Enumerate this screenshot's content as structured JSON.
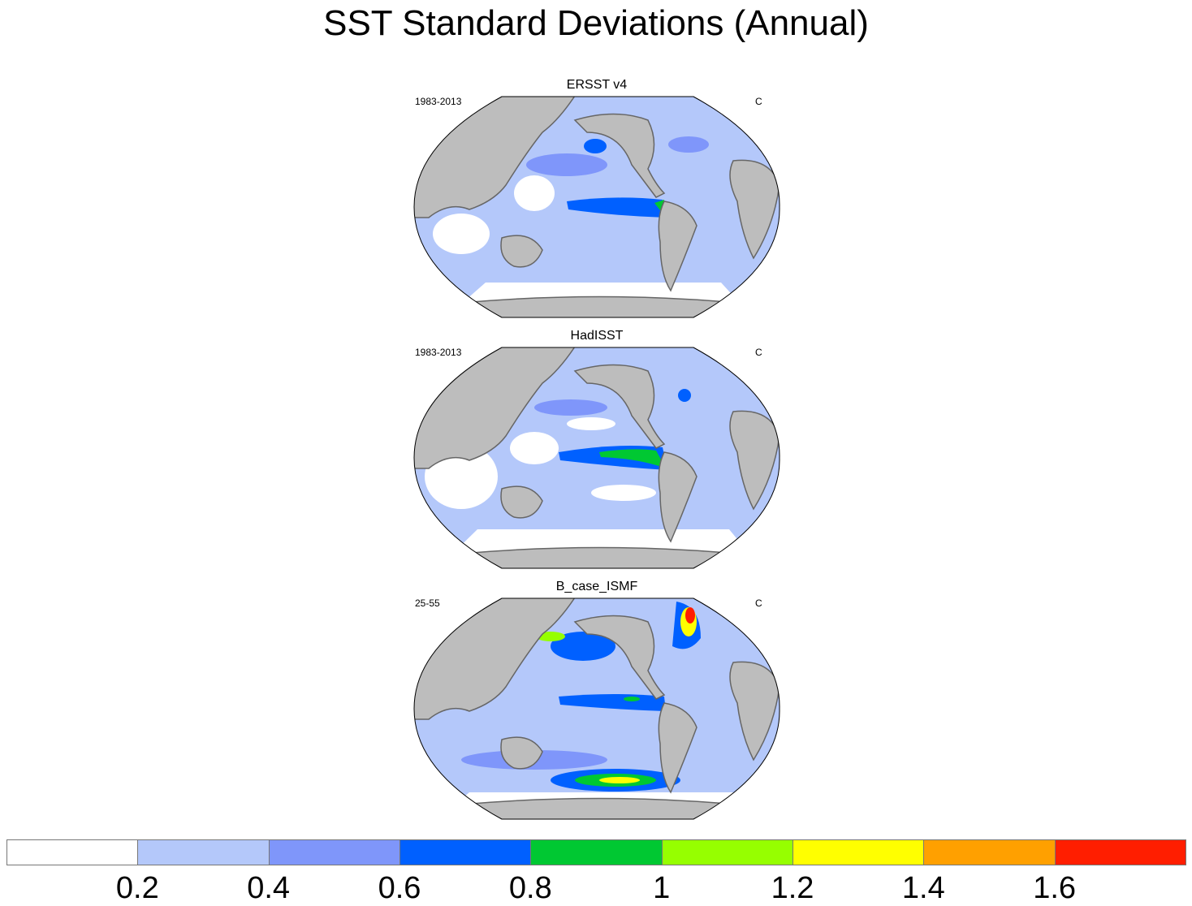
{
  "title": "SST Standard Deviations (Annual)",
  "panels": [
    {
      "title": "ERSST v4",
      "left_label": "1983-2013",
      "right_label": "C"
    },
    {
      "title": "HadISST",
      "left_label": "1983-2013",
      "right_label": "C"
    },
    {
      "title": "B_case_ISMF",
      "left_label": "25-55",
      "right_label": "C"
    }
  ],
  "colorbar": {
    "colors": [
      "#ffffff",
      "#b4c8fa",
      "#7f96fa",
      "#0060ff",
      "#00c832",
      "#96ff00",
      "#ffff00",
      "#ffa000",
      "#ff1e00"
    ],
    "labels": [
      "0.2",
      "0.4",
      "0.6",
      "0.8",
      "1",
      "1.2",
      "1.4",
      "1.6"
    ]
  },
  "colors": {
    "land": "#bdbdbd",
    "coast": "#666666"
  }
}
